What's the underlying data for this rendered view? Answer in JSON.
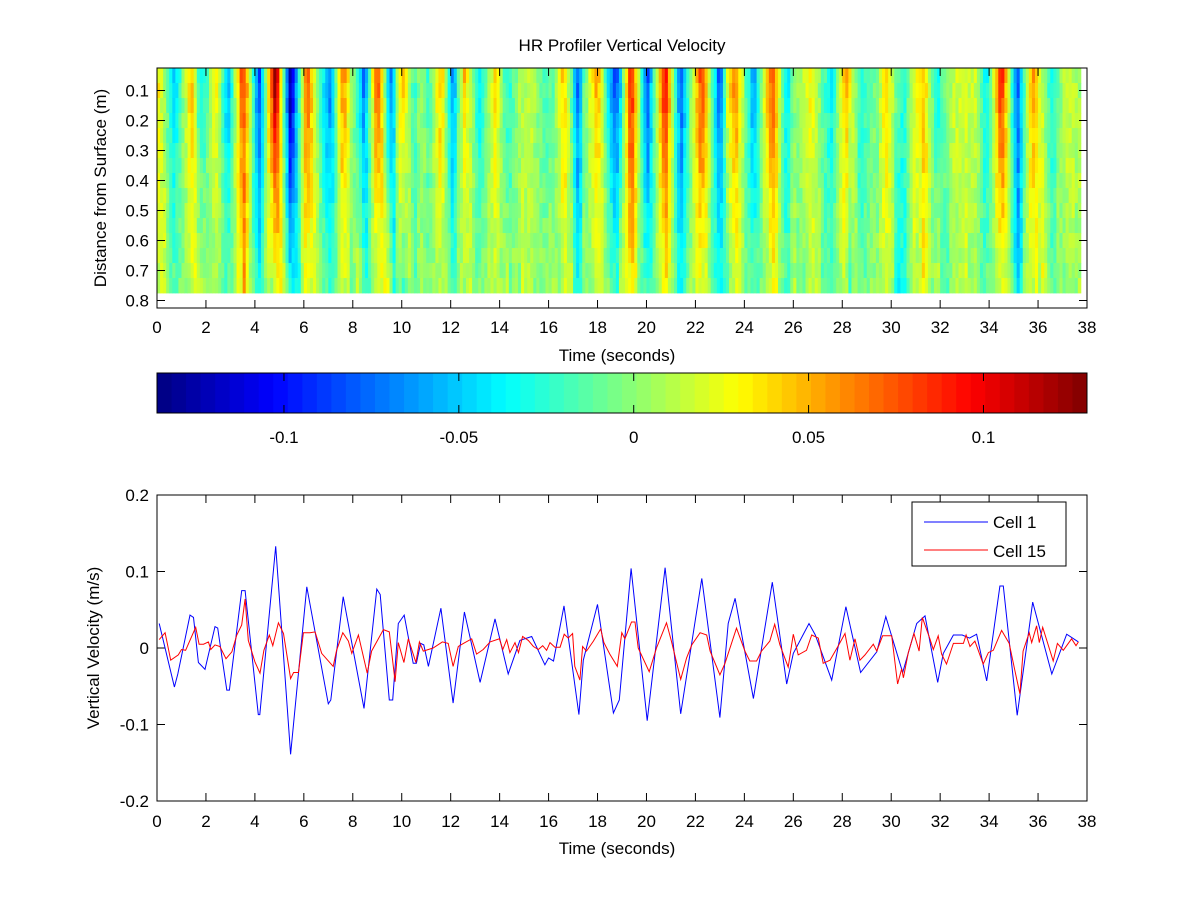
{
  "chart_data": [
    {
      "type": "heatmap",
      "title": "HR Profiler Vertical Velocity",
      "xlabel": "Time (seconds)",
      "ylabel": "Distance from Surface (m)",
      "xlim": [
        0,
        38
      ],
      "ylim": [
        0.025,
        0.825
      ],
      "y_reversed": true,
      "xticks": [
        0,
        2,
        4,
        6,
        8,
        10,
        12,
        14,
        16,
        18,
        20,
        22,
        24,
        26,
        28,
        30,
        32,
        34,
        36,
        38
      ],
      "yticks": [
        0.1,
        0.2,
        0.3,
        0.4,
        0.5,
        0.6,
        0.7,
        0.8
      ],
      "time_range": [
        0,
        37.75
      ],
      "depth_cells": 15,
      "depth_range": [
        0.025,
        0.775
      ],
      "colormap": "jet",
      "grid": false
    },
    {
      "type": "colorbar",
      "orientation": "horizontal",
      "colormap": "jet",
      "clim": [
        -0.1363,
        0.1296
      ],
      "ticks": [
        -0.1,
        -0.05,
        0,
        0.05,
        0.1
      ],
      "tick_labels": [
        "-0.1",
        "-0.05",
        "0",
        "0.05",
        "0.1"
      ]
    },
    {
      "type": "line",
      "xlabel": "Time (seconds)",
      "ylabel": "Vertical Velocity (m/s)",
      "xlim": [
        0,
        38
      ],
      "ylim": [
        -0.2,
        0.2
      ],
      "xticks": [
        0,
        2,
        4,
        6,
        8,
        10,
        12,
        14,
        16,
        18,
        20,
        22,
        24,
        26,
        28,
        30,
        32,
        34,
        36,
        38
      ],
      "yticks": [
        -0.2,
        -0.1,
        0,
        0.1,
        0.2
      ],
      "ytick_labels": [
        "-0.2",
        "-0.1",
        "0",
        "0.1",
        "0.2"
      ],
      "grid": false,
      "legend_position": "top-right",
      "series": [
        {
          "name": "Cell 1",
          "color": "#0000ff",
          "points": [
            [
              0.09,
              0.032
            ],
            [
              0.71,
              -0.051
            ],
            [
              0.85,
              -0.034
            ],
            [
              1.35,
              0.043
            ],
            [
              1.49,
              0.04
            ],
            [
              1.69,
              -0.019
            ],
            [
              1.96,
              -0.028
            ],
            [
              2.37,
              0.028
            ],
            [
              2.48,
              0.026
            ],
            [
              2.85,
              -0.055
            ],
            [
              2.96,
              -0.055
            ],
            [
              3.46,
              0.075
            ],
            [
              3.6,
              0.075
            ],
            [
              4.14,
              -0.087
            ],
            [
              4.2,
              -0.087
            ],
            [
              4.85,
              0.133
            ],
            [
              5.46,
              -0.139
            ],
            [
              6.12,
              0.08
            ],
            [
              7.0,
              -0.073
            ],
            [
              7.1,
              -0.068
            ],
            [
              7.61,
              0.067
            ],
            [
              8.46,
              -0.079
            ],
            [
              8.98,
              0.077
            ],
            [
              9.12,
              0.07
            ],
            [
              9.49,
              -0.068
            ],
            [
              9.63,
              -0.068
            ],
            [
              9.86,
              0.032
            ],
            [
              10.1,
              0.043
            ],
            [
              10.47,
              -0.02
            ],
            [
              10.6,
              -0.02
            ],
            [
              10.77,
              0.006
            ],
            [
              10.9,
              0.004
            ],
            [
              11.09,
              -0.024
            ],
            [
              11.6,
              0.052
            ],
            [
              12.1,
              -0.072
            ],
            [
              12.56,
              0.047
            ],
            [
              13.2,
              -0.045
            ],
            [
              13.81,
              0.038
            ],
            [
              14.35,
              -0.034
            ],
            [
              14.83,
              0.01
            ],
            [
              15.31,
              0.015
            ],
            [
              15.85,
              -0.022
            ],
            [
              16.0,
              -0.013
            ],
            [
              16.2,
              -0.017
            ],
            [
              16.63,
              0.055
            ],
            [
              17.24,
              -0.087
            ],
            [
              17.42,
              -0.016
            ],
            [
              18.0,
              0.057
            ],
            [
              18.65,
              -0.085
            ],
            [
              18.89,
              -0.068
            ],
            [
              19.37,
              0.104
            ],
            [
              20.03,
              -0.095
            ],
            [
              20.76,
              0.105
            ],
            [
              21.4,
              -0.086
            ],
            [
              22.26,
              0.091
            ],
            [
              23.0,
              -0.091
            ],
            [
              23.34,
              0.032
            ],
            [
              23.62,
              0.065
            ],
            [
              24.37,
              -0.066
            ],
            [
              25.14,
              0.086
            ],
            [
              25.73,
              -0.047
            ],
            [
              26.0,
              -0.007
            ],
            [
              26.64,
              0.032
            ],
            [
              26.9,
              0.017
            ],
            [
              27.57,
              -0.042
            ],
            [
              28.15,
              0.054
            ],
            [
              28.75,
              -0.032
            ],
            [
              29.41,
              -0.005
            ],
            [
              29.78,
              0.041
            ],
            [
              30.47,
              -0.032
            ],
            [
              31.04,
              0.032
            ],
            [
              31.38,
              0.042
            ],
            [
              31.9,
              -0.045
            ],
            [
              32.13,
              -0.007
            ],
            [
              32.54,
              0.017
            ],
            [
              32.9,
              0.017
            ],
            [
              33.2,
              0.013
            ],
            [
              33.49,
              0.018
            ],
            [
              33.9,
              -0.043
            ],
            [
              34.44,
              0.081
            ],
            [
              34.58,
              0.081
            ],
            [
              35.15,
              -0.088
            ],
            [
              35.78,
              0.06
            ],
            [
              36.56,
              -0.034
            ],
            [
              37.17,
              0.018
            ],
            [
              37.65,
              0.008
            ]
          ]
        },
        {
          "name": "Cell 15",
          "color": "#ff0000",
          "points": [
            [
              0.09,
              0.011
            ],
            [
              0.33,
              0.02
            ],
            [
              0.56,
              -0.016
            ],
            [
              0.87,
              -0.009
            ],
            [
              1.0,
              -0.002
            ],
            [
              1.17,
              -0.003
            ],
            [
              1.58,
              0.027
            ],
            [
              1.72,
              0.005
            ],
            [
              1.9,
              0.005
            ],
            [
              2.1,
              0.008
            ],
            [
              2.2,
              -0.002
            ],
            [
              2.37,
              0.004
            ],
            [
              2.57,
              0.002
            ],
            [
              2.82,
              -0.014
            ],
            [
              3.06,
              -0.005
            ],
            [
              3.26,
              0.017
            ],
            [
              3.46,
              0.03
            ],
            [
              3.6,
              0.064
            ],
            [
              3.73,
              0.01
            ],
            [
              4.0,
              -0.018
            ],
            [
              4.21,
              -0.033
            ],
            [
              4.37,
              -0.003
            ],
            [
              4.59,
              0.017
            ],
            [
              4.73,
              0.003
            ],
            [
              4.96,
              0.033
            ],
            [
              5.17,
              0.019
            ],
            [
              5.46,
              -0.04
            ],
            [
              5.58,
              -0.032
            ],
            [
              5.78,
              -0.032
            ],
            [
              5.98,
              0.02
            ],
            [
              6.25,
              0.02
            ],
            [
              6.46,
              0.021
            ],
            [
              6.73,
              -0.007
            ],
            [
              7.2,
              -0.024
            ],
            [
              7.34,
              -0.003
            ],
            [
              7.59,
              0.02
            ],
            [
              7.82,
              0.009
            ],
            [
              7.96,
              -0.007
            ],
            [
              8.23,
              0.017
            ],
            [
              8.59,
              -0.033
            ],
            [
              8.77,
              -0.004
            ],
            [
              9.25,
              0.024
            ],
            [
              9.49,
              0.021
            ],
            [
              9.73,
              -0.044
            ],
            [
              9.86,
              0.007
            ],
            [
              10.09,
              -0.019
            ],
            [
              10.27,
              0.012
            ],
            [
              10.58,
              -0.019
            ],
            [
              10.72,
              0.008
            ],
            [
              10.88,
              -0.004
            ],
            [
              11.28,
              0.0
            ],
            [
              11.66,
              0.008
            ],
            [
              11.9,
              0.006
            ],
            [
              12.1,
              -0.024
            ],
            [
              12.31,
              0.002
            ],
            [
              12.52,
              0.006
            ],
            [
              12.86,
              0.012
            ],
            [
              13.06,
              -0.008
            ],
            [
              13.33,
              -0.002
            ],
            [
              13.61,
              0.008
            ],
            [
              13.99,
              0.012
            ],
            [
              14.13,
              -0.002
            ],
            [
              14.29,
              0.011
            ],
            [
              14.42,
              -0.006
            ],
            [
              14.63,
              0.007
            ],
            [
              14.77,
              -0.006
            ],
            [
              14.94,
              0.015
            ],
            [
              15.17,
              0.01
            ],
            [
              15.38,
              0.002
            ],
            [
              15.58,
              -0.002
            ],
            [
              15.76,
              0.003
            ],
            [
              15.92,
              -0.003
            ],
            [
              16.06,
              0.007
            ],
            [
              16.26,
              0.001
            ],
            [
              16.47,
              0.001
            ],
            [
              16.64,
              0.018
            ],
            [
              16.8,
              0.013
            ],
            [
              16.98,
              0.019
            ],
            [
              17.07,
              -0.024
            ],
            [
              17.28,
              -0.042
            ],
            [
              17.39,
              0.002
            ],
            [
              17.55,
              -0.004
            ],
            [
              17.83,
              0.009
            ],
            [
              18.13,
              0.025
            ],
            [
              18.26,
              0.007
            ],
            [
              18.5,
              -0.008
            ],
            [
              18.81,
              -0.024
            ],
            [
              18.99,
              0.02
            ],
            [
              19.12,
              0.012
            ],
            [
              19.39,
              0.034
            ],
            [
              19.53,
              0.034
            ],
            [
              19.66,
              0.0
            ],
            [
              20.11,
              -0.031
            ],
            [
              20.41,
              0.0
            ],
            [
              20.82,
              0.033
            ],
            [
              21.02,
              0.009
            ],
            [
              21.4,
              -0.041
            ],
            [
              21.64,
              -0.013
            ],
            [
              21.85,
              0.004
            ],
            [
              22.19,
              0.02
            ],
            [
              22.46,
              0.017
            ],
            [
              22.6,
              -0.004
            ],
            [
              23.0,
              -0.035
            ],
            [
              23.21,
              -0.02
            ],
            [
              23.68,
              0.026
            ],
            [
              24.02,
              -0.004
            ],
            [
              24.22,
              -0.017
            ],
            [
              24.5,
              -0.017
            ],
            [
              24.7,
              -0.004
            ],
            [
              25.04,
              0.009
            ],
            [
              25.24,
              0.031
            ],
            [
              25.45,
              0.004
            ],
            [
              25.79,
              -0.025
            ],
            [
              26.0,
              0.018
            ],
            [
              26.2,
              -0.009
            ],
            [
              26.54,
              -0.003
            ],
            [
              26.75,
              0.017
            ],
            [
              27.02,
              0.013
            ],
            [
              27.22,
              -0.02
            ],
            [
              27.5,
              -0.016
            ],
            [
              27.84,
              0.003
            ],
            [
              28.11,
              0.019
            ],
            [
              28.31,
              -0.016
            ],
            [
              28.52,
              0.012
            ],
            [
              28.72,
              -0.016
            ],
            [
              28.93,
              -0.009
            ],
            [
              29.27,
              0.005
            ],
            [
              29.41,
              -0.004
            ],
            [
              29.65,
              0.016
            ],
            [
              30.02,
              0.016
            ],
            [
              30.26,
              -0.047
            ],
            [
              30.43,
              -0.027
            ],
            [
              30.5,
              -0.039
            ],
            [
              30.7,
              -0.006
            ],
            [
              30.93,
              0.019
            ],
            [
              31.14,
              -0.004
            ],
            [
              31.27,
              0.04
            ],
            [
              31.58,
              0.012
            ],
            [
              31.72,
              -0.002
            ],
            [
              31.92,
              0.016
            ],
            [
              32.06,
              -0.008
            ],
            [
              32.26,
              -0.021
            ],
            [
              32.54,
              0.006
            ],
            [
              32.95,
              0.006
            ],
            [
              33.06,
              0.017
            ],
            [
              33.22,
              0.002
            ],
            [
              33.42,
              0.009
            ],
            [
              33.76,
              -0.021
            ],
            [
              33.97,
              -0.006
            ],
            [
              34.17,
              -0.003
            ],
            [
              34.51,
              0.023
            ],
            [
              34.82,
              0.006
            ],
            [
              35.05,
              -0.029
            ],
            [
              35.26,
              -0.06
            ],
            [
              35.39,
              -0.004
            ],
            [
              35.64,
              0.02
            ],
            [
              35.74,
              0.007
            ],
            [
              35.94,
              0.029
            ],
            [
              36.05,
              0.007
            ],
            [
              36.19,
              0.027
            ],
            [
              36.62,
              -0.017
            ],
            [
              36.79,
              0.006
            ],
            [
              37.03,
              -0.003
            ],
            [
              37.37,
              0.012
            ],
            [
              37.55,
              0.003
            ],
            [
              37.65,
              0.008
            ]
          ]
        }
      ]
    }
  ]
}
